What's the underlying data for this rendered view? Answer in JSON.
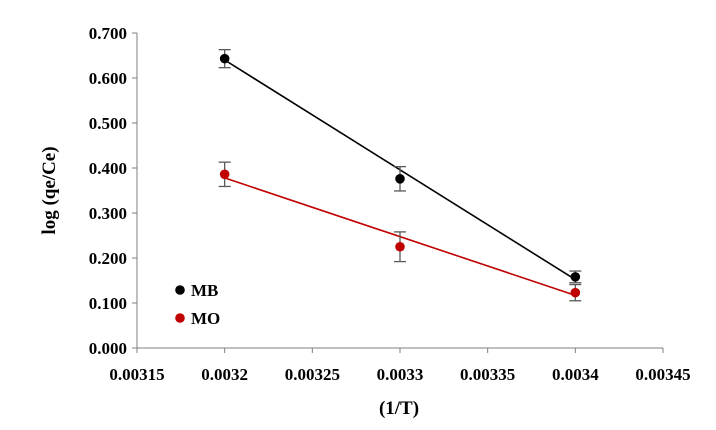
{
  "chart_data": {
    "type": "scatter",
    "title": "",
    "xlabel": "(1/T)",
    "ylabel": "log (qe/Ce)",
    "xlim": [
      0.00315,
      0.00345
    ],
    "ylim": [
      0,
      0.7
    ],
    "x_ticks": [
      0.00315,
      0.0032,
      0.00325,
      0.0033,
      0.00335,
      0.0034,
      0.00345
    ],
    "x_tick_labels": [
      "0.00315",
      "0.0032",
      "0.00325",
      "0.0033",
      "0.00335",
      "0.0034",
      "0.00345"
    ],
    "y_ticks": [
      0,
      0.1,
      0.2,
      0.3,
      0.4,
      0.5,
      0.6,
      0.7
    ],
    "y_tick_labels": [
      "0.000",
      "0.100",
      "0.200",
      "0.300",
      "0.400",
      "0.500",
      "0.600",
      "0.700"
    ],
    "grid": false,
    "legend_position": "bottom-left",
    "series": [
      {
        "name": "MB",
        "color": "#000000",
        "x": [
          0.0032,
          0.0033,
          0.0034
        ],
        "y": [
          0.643,
          0.376,
          0.158
        ],
        "error": [
          0.02,
          0.027,
          0.013
        ],
        "trendline": {
          "x": [
            0.0032,
            0.0034
          ],
          "y": [
            0.64,
            0.152
          ]
        }
      },
      {
        "name": "MO",
        "color": "#c00000",
        "x": [
          0.0032,
          0.0033,
          0.0034
        ],
        "y": [
          0.386,
          0.225,
          0.123
        ],
        "error": [
          0.027,
          0.033,
          0.018
        ],
        "trendline": {
          "x": [
            0.0032,
            0.0034
          ],
          "y": [
            0.378,
            0.117
          ]
        }
      }
    ]
  }
}
